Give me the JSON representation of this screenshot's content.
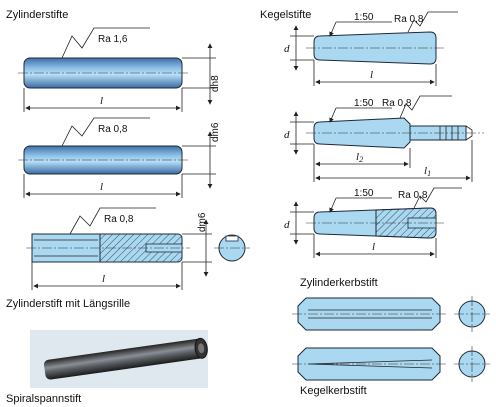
{
  "headings": {
    "zylinderstifte": "Zylinderstifte",
    "kegelstifte": "Kegelstifte",
    "laengsrille": "Zylinderstift mit Längsrille",
    "zylinderkerbstift": "Zylinderkerbstift",
    "spiralspannstift": "Spiralspannstift",
    "kegelkerbstift": "Kegelkerbstift"
  },
  "zyl1": {
    "ra": "Ra  1,6",
    "tol": "dh8",
    "len": "l"
  },
  "zyl2": {
    "ra": "Ra  0,8",
    "tol": "dm6",
    "len": "l"
  },
  "zyl3": {
    "ra": "Ra  0,8",
    "tol": "dm6",
    "len": "l"
  },
  "keg1": {
    "taper": "1:50",
    "ra": "Ra 0,8",
    "d": "d",
    "len": "l"
  },
  "keg2": {
    "taper": "1:50",
    "ra": "Ra 0,8",
    "d": "d",
    "len2": "l",
    "sub2": "2",
    "len1": "l",
    "sub1": "1"
  },
  "keg3": {
    "taper": "1:50",
    "ra": "Ra 0,8",
    "d": "d",
    "len": "l"
  },
  "colors": {
    "pin_fill": "#a9d8f0",
    "pin_dark": "#3f7fb0",
    "outline": "#1d2a3a"
  }
}
